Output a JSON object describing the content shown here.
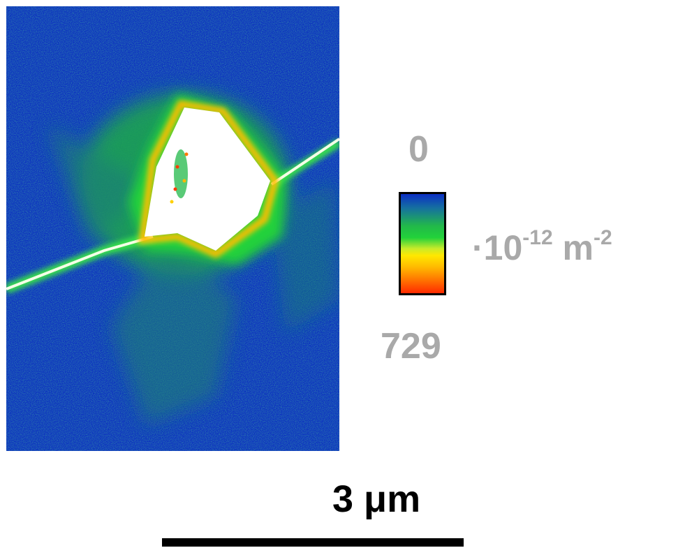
{
  "colorbar": {
    "min_label": "0",
    "max_label": "729",
    "unit_prefix": "·10",
    "unit_exp1": "-12",
    "unit_mid": " m",
    "unit_exp2": "-2",
    "colors": [
      "#0b2fc4",
      "#1570a0",
      "#22b84a",
      "#22d23a",
      "#c8ea2a",
      "#ffe800",
      "#ffb800",
      "#ff7800",
      "#ff2a00"
    ]
  },
  "scale_bar": {
    "label": "3 μm"
  },
  "map": {
    "background_color": "#0b2fc4",
    "mid_color": "#22b84a",
    "high_color": "#ffffff"
  }
}
